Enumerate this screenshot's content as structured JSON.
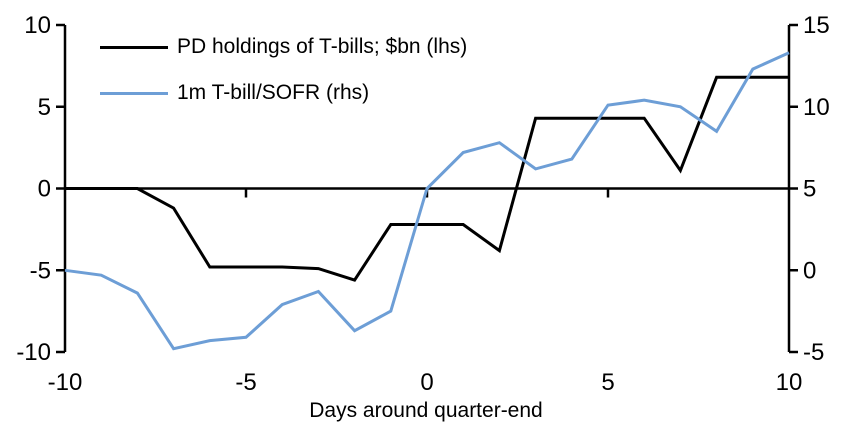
{
  "chart_data": {
    "type": "line",
    "title": "",
    "background": "#ffffff",
    "grid": false,
    "legend_position": "top-left",
    "x": [
      -10,
      -9,
      -8,
      -7,
      -6,
      -5,
      -4,
      -3,
      -2,
      -1,
      0,
      1,
      2,
      3,
      4,
      5,
      6,
      7,
      8,
      9,
      10
    ],
    "series": [
      {
        "name": "PD holdings of T-bills; $bn (lhs)",
        "axis": "lhs",
        "color": "#000000",
        "values": [
          0,
          0,
          0,
          -1.2,
          -4.8,
          -4.8,
          -4.8,
          -4.9,
          -5.6,
          -2.2,
          -2.2,
          -2.2,
          -3.8,
          4.3,
          4.3,
          4.3,
          4.3,
          1.1,
          6.8,
          6.8,
          6.8
        ]
      },
      {
        "name": "1m T-bill/SOFR (rhs)",
        "axis": "rhs",
        "color": "#6D9ED6",
        "values": [
          0.0,
          -0.3,
          -1.4,
          -4.8,
          -4.3,
          -4.1,
          -2.1,
          -1.3,
          -3.7,
          -2.5,
          5.0,
          7.2,
          7.8,
          6.2,
          6.8,
          10.1,
          10.4,
          10.0,
          8.5,
          12.3,
          13.3
        ]
      }
    ],
    "left_axis": {
      "range": [
        -10,
        10
      ],
      "ticks": [
        -10,
        -5,
        0,
        5,
        10
      ],
      "tick_labels": [
        "-10",
        "-5",
        "0",
        "5",
        "10"
      ]
    },
    "right_axis": {
      "range": [
        -5,
        15
      ],
      "ticks": [
        -5,
        0,
        5,
        10,
        15
      ],
      "tick_labels": [
        "-5",
        "0",
        "5",
        "10",
        "15"
      ]
    },
    "x_axis": {
      "range": [
        -10,
        10
      ],
      "ticks": [
        -10,
        -5,
        0,
        5,
        10
      ],
      "tick_labels": [
        "-10",
        "-5",
        "0",
        "5",
        "10"
      ],
      "label": "Days around quarter-end",
      "zero_line_at": 0
    }
  }
}
